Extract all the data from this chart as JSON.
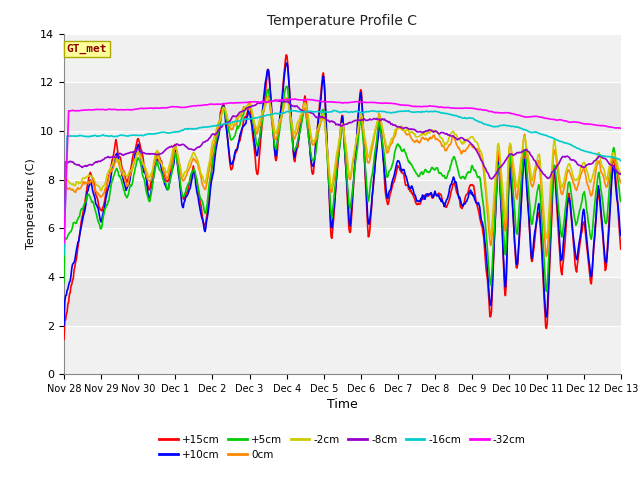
{
  "title": "Temperature Profile C",
  "xlabel": "Time",
  "ylabel": "Temperature (C)",
  "ylim": [
    0,
    14
  ],
  "annotation": "GT_met",
  "annotation_color": "#8B0000",
  "annotation_bg": "#FFFF99",
  "series_order": [
    "+15cm",
    "+10cm",
    "+5cm",
    "0cm",
    "-2cm",
    "-8cm",
    "-16cm",
    "-32cm"
  ],
  "colors": {
    "+15cm": "#FF0000",
    "+10cm": "#0000FF",
    "+5cm": "#00CC00",
    "0cm": "#FF8800",
    "-2cm": "#CCCC00",
    "-8cm": "#9900CC",
    "-16cm": "#00CCCC",
    "-32cm": "#FF00FF"
  },
  "xtick_labels": [
    "Nov 28",
    "Nov 29",
    "Nov 30",
    "Dec 1",
    "Dec 2",
    "Dec 3",
    "Dec 4",
    "Dec 5",
    "Dec 6",
    "Dec 7",
    "Dec 8",
    "Dec 9",
    "Dec 10",
    "Dec 11",
    "Dec 12",
    "Dec 13"
  ],
  "ytick_labels": [
    "0",
    "2",
    "4",
    "6",
    "8",
    "10",
    "12",
    "14"
  ],
  "ytick_vals": [
    0,
    2,
    4,
    6,
    8,
    10,
    12,
    14
  ],
  "background_color": "#FFFFFF",
  "plot_bg": "#E8E8E8",
  "grid_color": "#FFFFFF",
  "lw": 1.2,
  "figsize": [
    6.4,
    4.8
  ],
  "dpi": 100
}
